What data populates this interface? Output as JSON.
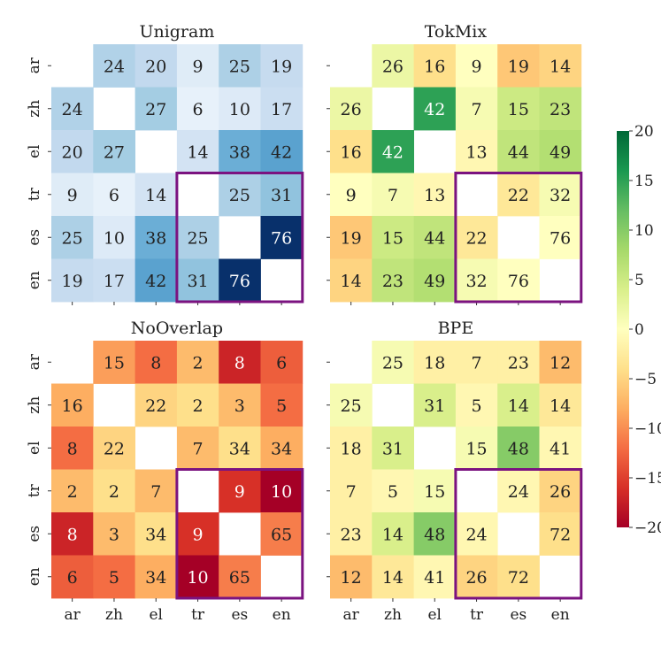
{
  "chart_data": {
    "type": "heatmap",
    "languages": [
      "ar",
      "zh",
      "el",
      "tr",
      "es",
      "en"
    ],
    "panels": [
      {
        "title": "Unigram",
        "colormap": "Blues",
        "matrix": [
          [
            null,
            24,
            20,
            9,
            25,
            19
          ],
          [
            24,
            null,
            27,
            6,
            10,
            17
          ],
          [
            20,
            27,
            null,
            14,
            38,
            42
          ],
          [
            9,
            6,
            14,
            null,
            25,
            31
          ],
          [
            25,
            10,
            38,
            25,
            null,
            76
          ],
          [
            19,
            17,
            42,
            31,
            76,
            null
          ]
        ]
      },
      {
        "title": "TokMix",
        "colormap": "RdYlGn",
        "matrix": [
          [
            null,
            26,
            16,
            9,
            19,
            14
          ],
          [
            26,
            null,
            42,
            7,
            15,
            23
          ],
          [
            16,
            42,
            null,
            13,
            44,
            49
          ],
          [
            9,
            7,
            13,
            null,
            22,
            32
          ],
          [
            19,
            15,
            44,
            22,
            null,
            76
          ],
          [
            14,
            23,
            49,
            32,
            76,
            null
          ]
        ],
        "color_delta": [
          [
            null,
            2,
            -4,
            0,
            -6,
            -5
          ],
          [
            2,
            null,
            15,
            1,
            5,
            6
          ],
          [
            -4,
            15,
            null,
            -1,
            6,
            7
          ],
          [
            0,
            1,
            -1,
            null,
            -3,
            1
          ],
          [
            -6,
            5,
            6,
            -3,
            null,
            0
          ],
          [
            -5,
            6,
            7,
            1,
            0,
            null
          ]
        ]
      },
      {
        "title": "NoOverlap",
        "colormap": "RdYlGn",
        "matrix": [
          [
            null,
            15,
            8,
            2,
            8,
            6
          ],
          [
            16,
            null,
            22,
            2,
            3,
            5
          ],
          [
            8,
            22,
            null,
            7,
            34,
            34
          ],
          [
            2,
            2,
            7,
            null,
            9,
            10
          ],
          [
            8,
            3,
            34,
            9,
            null,
            65
          ],
          [
            6,
            5,
            34,
            10,
            65,
            null
          ]
        ],
        "color_delta": [
          [
            null,
            -9,
            -12,
            -7,
            -17,
            -13
          ],
          [
            -8,
            null,
            -5,
            -4,
            -7,
            -12
          ],
          [
            -12,
            -5,
            null,
            -7,
            -4,
            -8
          ],
          [
            -7,
            -4,
            -7,
            null,
            -16,
            -21
          ],
          [
            -17,
            -7,
            -4,
            -16,
            null,
            -11
          ],
          [
            -13,
            -12,
            -8,
            -21,
            -11,
            null
          ]
        ]
      },
      {
        "title": "BPE",
        "colormap": "RdYlGn",
        "matrix": [
          [
            null,
            25,
            18,
            7,
            23,
            12
          ],
          [
            25,
            null,
            31,
            5,
            14,
            14
          ],
          [
            18,
            31,
            null,
            15,
            48,
            41
          ],
          [
            7,
            5,
            15,
            null,
            24,
            26
          ],
          [
            23,
            14,
            48,
            24,
            null,
            72
          ],
          [
            12,
            14,
            41,
            26,
            72,
            null
          ]
        ],
        "color_delta": [
          [
            null,
            1,
            -2,
            -2,
            -2,
            -7
          ],
          [
            1,
            null,
            4,
            -1,
            4,
            -3
          ],
          [
            -2,
            4,
            null,
            1,
            10,
            -1
          ],
          [
            -2,
            -1,
            1,
            null,
            -1,
            -5
          ],
          [
            -2,
            4,
            10,
            -1,
            null,
            -4
          ],
          [
            -7,
            -3,
            -1,
            -5,
            -4,
            null
          ]
        ]
      }
    ],
    "highlight_block": {
      "rows": [
        "tr",
        "es",
        "en"
      ],
      "cols": [
        "tr",
        "es",
        "en"
      ],
      "color": "#7b1380"
    },
    "colorbar": {
      "min": -20,
      "max": 20,
      "ticks": [
        20,
        15,
        10,
        5,
        0,
        -5,
        -10,
        -15,
        -20
      ],
      "tick_labels": [
        "20",
        "15",
        "10",
        "5",
        "0",
        "−5",
        "−10",
        "−15",
        "−20"
      ]
    }
  }
}
